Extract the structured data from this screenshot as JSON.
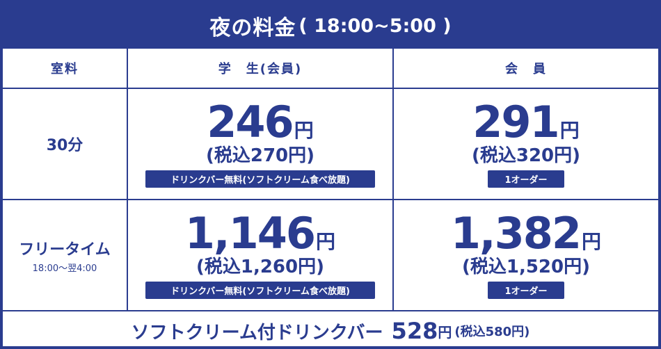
{
  "title": {
    "main": "夜の料金",
    "hours": "( 18:00~5:00 )"
  },
  "header": {
    "room_fee": "室料",
    "student": "学　生(会員)",
    "member": "会　員"
  },
  "plans": [
    {
      "name": "30分",
      "hours": "",
      "student": {
        "price": "246",
        "unit": "円",
        "tax_included": "(税込270円)",
        "note": "ドリンクバー無料(ソフトクリーム食べ放題)"
      },
      "member": {
        "price": "291",
        "unit": "円",
        "tax_included": "(税込320円)",
        "note": "1オーダー"
      }
    },
    {
      "name": "フリータイム",
      "hours": "18:00～翌4:00",
      "student": {
        "price": "1,146",
        "unit": "円",
        "tax_included": "(税込1,260円)",
        "note": "ドリンクバー無料(ソフトクリーム食べ放題)"
      },
      "member": {
        "price": "1,382",
        "unit": "円",
        "tax_included": "(税込1,520円)",
        "note": "1オーダー"
      }
    }
  ],
  "footer": {
    "label": "ソフトクリーム付ドリンクバー",
    "price": "528",
    "unit": "円",
    "tax_included": "(税込580円)"
  },
  "colors": {
    "navy": "#2a3c8f",
    "white": "#ffffff"
  }
}
